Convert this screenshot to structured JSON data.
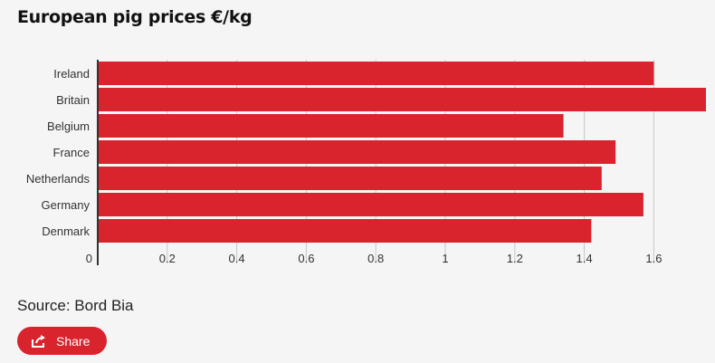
{
  "title": "European pig prices €/kg",
  "source": "Source: Bord Bia",
  "share": {
    "label": "Share",
    "icon": "share-icon"
  },
  "colors": {
    "bar": "#d9232d",
    "grid": "#c8c8c8",
    "axis": "#333333",
    "background": "#f5f5f5"
  },
  "chart_data": {
    "type": "bar",
    "orientation": "horizontal",
    "title": "European pig prices €/kg",
    "xlabel": "",
    "ylabel": "",
    "categories": [
      "Ireland",
      "Britain",
      "Belgium",
      "France",
      "Netherlands",
      "Germany",
      "Denmark"
    ],
    "values": [
      1.6,
      1.75,
      1.34,
      1.49,
      1.45,
      1.57,
      1.42
    ],
    "xlim": [
      0,
      1.75
    ],
    "ticks": [
      0,
      0.2,
      0.4,
      0.6,
      0.8,
      1,
      1.2,
      1.4,
      1.6
    ],
    "tick_labels": [
      "0",
      "0.2",
      "0.4",
      "0.6",
      "0.8",
      "1",
      "1.2",
      "1.4",
      "1.6"
    ],
    "grid": true,
    "legend": "none"
  }
}
